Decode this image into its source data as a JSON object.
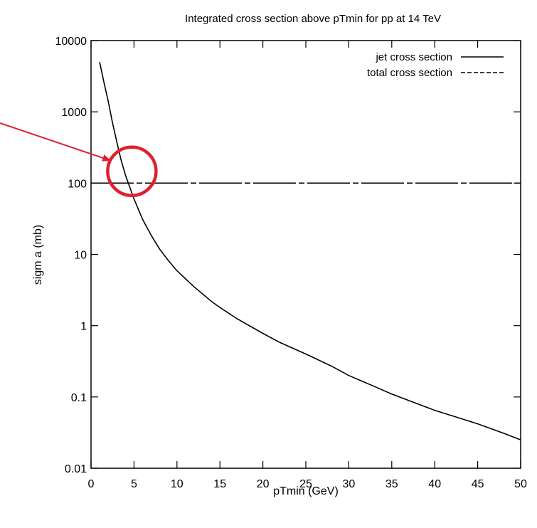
{
  "chart_data": {
    "type": "line",
    "title": "Integrated cross section above pTmin for pp at 14  TeV",
    "xlabel": "pTmin (GeV)",
    "ylabel": "sigm a  (mb)",
    "xlim": [
      0,
      50
    ],
    "ylim": [
      0.01,
      10000
    ],
    "yscale": "log",
    "grid": false,
    "legend_position": "top-right",
    "xticks": [
      0,
      5,
      10,
      15,
      20,
      25,
      30,
      35,
      40,
      45,
      50
    ],
    "xtick_labels": [
      "0",
      "5",
      "10",
      "15",
      "20",
      "25",
      "30",
      "35",
      "40",
      "45",
      "50"
    ],
    "yticks": [
      0.01,
      0.1,
      1,
      10,
      100,
      1000,
      10000
    ],
    "ytick_labels": [
      "0.01",
      "0.1",
      "1",
      "10",
      "100",
      "1000",
      "10000"
    ],
    "series": [
      {
        "name": "jet cross section",
        "style": "solid",
        "color": "#000000",
        "x": [
          1,
          1.5,
          2,
          2.5,
          3,
          3.5,
          4,
          4.5,
          5,
          6,
          7,
          8,
          9,
          10,
          12,
          14,
          15,
          17,
          20,
          22,
          25,
          28,
          30,
          33,
          35,
          38,
          40,
          43,
          45,
          48,
          50
        ],
        "y": [
          5000,
          2600,
          1400,
          700,
          380,
          210,
          130,
          88,
          60,
          31,
          18.5,
          11.8,
          8.2,
          5.9,
          3.5,
          2.2,
          1.8,
          1.25,
          0.78,
          0.58,
          0.4,
          0.27,
          0.2,
          0.14,
          0.11,
          0.08,
          0.065,
          0.05,
          0.042,
          0.031,
          0.025
        ]
      },
      {
        "name": "total cross section",
        "style": "dashed",
        "color": "#000000",
        "x": [
          0,
          50
        ],
        "y": [
          100,
          100
        ]
      }
    ],
    "annotations": [
      {
        "type": "circle",
        "x": 5,
        "y": 150,
        "color": "#e0202e"
      },
      {
        "type": "arrow",
        "x_end": 2.5,
        "y_end": 200,
        "color": "#e0202e"
      }
    ]
  }
}
